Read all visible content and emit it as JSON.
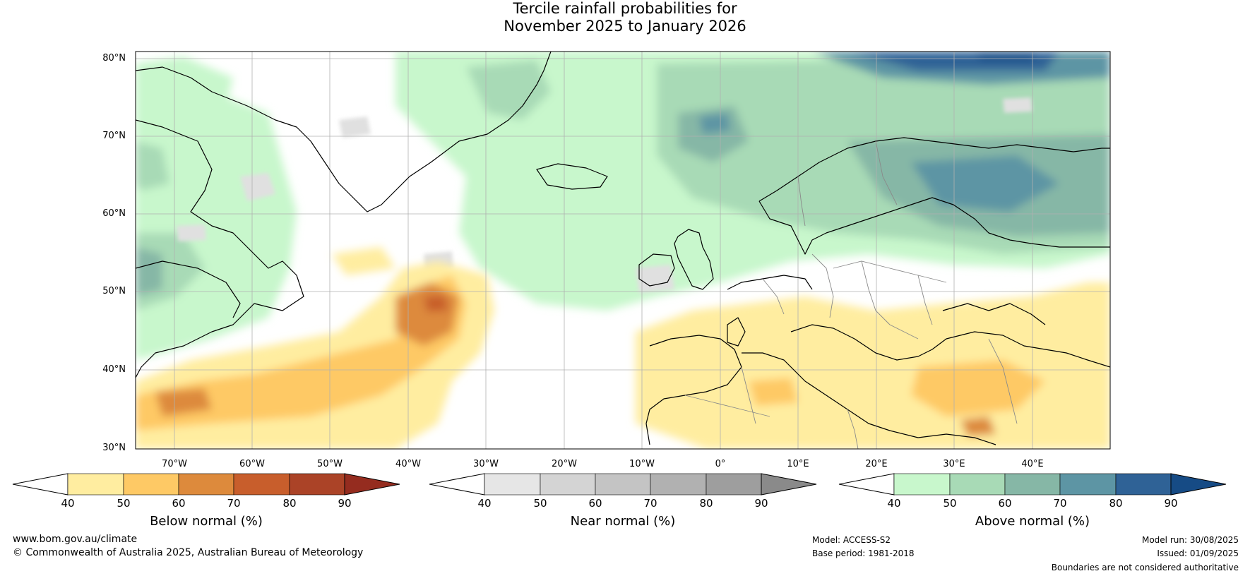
{
  "title": {
    "line1": "Tercile rainfall probabilities for",
    "line2": "November 2025 to January 2026"
  },
  "map": {
    "lat_labels": [
      "80°N",
      "70°N",
      "60°N",
      "50°N",
      "40°N",
      "30°N"
    ],
    "lon_labels": [
      "70°W",
      "60°W",
      "50°W",
      "40°W",
      "30°W",
      "20°W",
      "10°W",
      "0°",
      "10°E",
      "20°E",
      "30°E",
      "40°E"
    ]
  },
  "colorbars": [
    {
      "label": "Below normal (%)",
      "ticks": [
        "40",
        "50",
        "60",
        "70",
        "80",
        "90"
      ],
      "colors": [
        "#ffeda0",
        "#fec965",
        "#dd8a3c",
        "#c85e2c",
        "#ab4327",
        "#952c1f"
      ]
    },
    {
      "label": "Near normal (%)",
      "ticks": [
        "40",
        "50",
        "60",
        "70",
        "80",
        "90"
      ],
      "colors": [
        "#e6e6e6",
        "#d4d4d4",
        "#c4c4c4",
        "#b1b1b1",
        "#9e9e9e",
        "#8a8a8a"
      ]
    },
    {
      "label": "Above normal (%)",
      "ticks": [
        "40",
        "50",
        "60",
        "70",
        "80",
        "90"
      ],
      "colors": [
        "#c8f7cc",
        "#a8dab6",
        "#86b7a6",
        "#5d95a4",
        "#2f6296",
        "#164b85"
      ]
    }
  ],
  "footer": {
    "website": "www.bom.gov.au/climate",
    "copyright": "© Commonwealth of Australia 2025, Australian Bureau of Meteorology",
    "model": "Model: ACCESS-S2",
    "base_period": "Base period: 1981-2018",
    "model_run": "Model run: 30/08/2025",
    "issued": "Issued: 01/09/2025",
    "disclaimer": "Boundaries are not considered authoritative"
  }
}
